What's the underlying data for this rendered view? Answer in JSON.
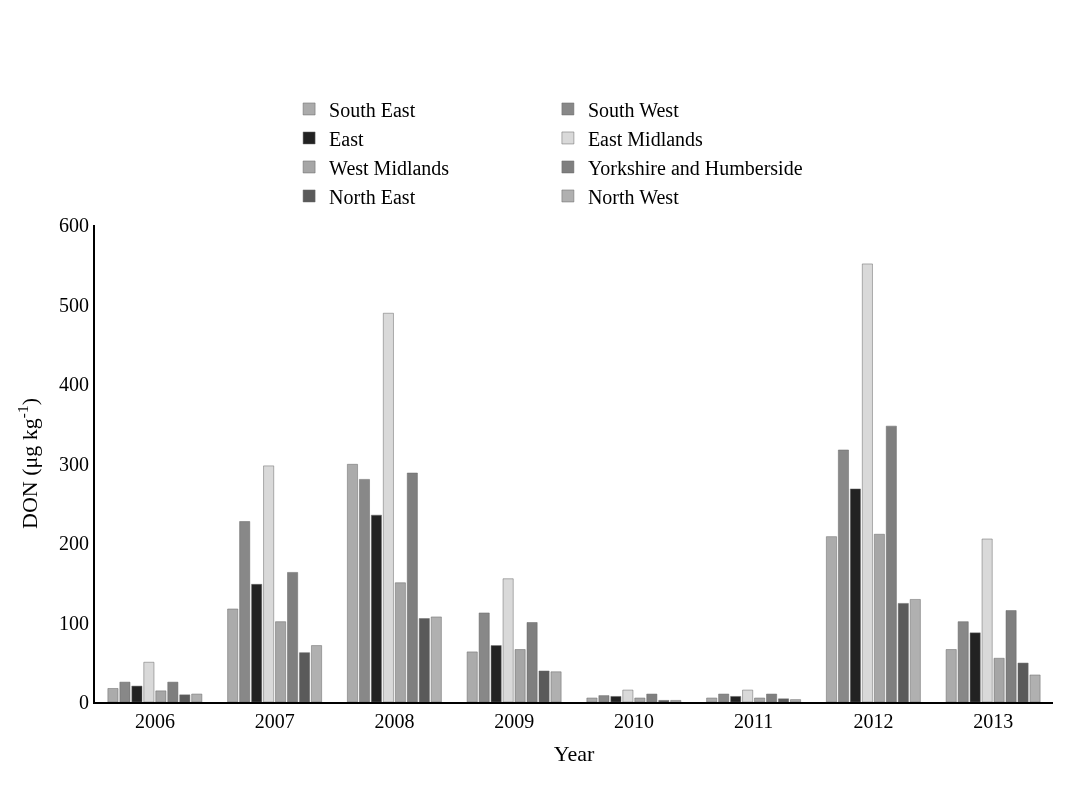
{
  "chart_data": {
    "type": "bar",
    "xlabel": "Year",
    "ylabel": "DON (μg kg$^{-1}$)",
    "categories": [
      "2006",
      "2007",
      "2008",
      "2009",
      "2010",
      "2011",
      "2012",
      "2013"
    ],
    "series": [
      {
        "name": "South East",
        "color": "#ababab",
        "values": [
          17,
          117,
          299,
          63,
          5,
          5,
          208,
          66
        ]
      },
      {
        "name": "South West",
        "color": "#888888",
        "values": [
          25,
          227,
          280,
          112,
          8,
          10,
          317,
          101
        ]
      },
      {
        "name": "East",
        "color": "#222222",
        "values": [
          20,
          148,
          235,
          71,
          7,
          7,
          268,
          87
        ]
      },
      {
        "name": "East Midlands",
        "color": "#d9d9d9",
        "values": [
          50,
          297,
          489,
          155,
          15,
          15,
          551,
          205
        ]
      },
      {
        "name": "West Midlands",
        "color": "#a6a6a6",
        "values": [
          14,
          101,
          150,
          66,
          5,
          5,
          211,
          55
        ]
      },
      {
        "name": "Yorkshire and Humberside",
        "color": "#7f7f7f",
        "values": [
          25,
          163,
          288,
          100,
          10,
          10,
          347,
          115
        ]
      },
      {
        "name": "North East",
        "color": "#5a5a5a",
        "values": [
          9,
          62,
          105,
          39,
          2,
          4,
          124,
          49
        ]
      },
      {
        "name": "North West",
        "color": "#b0b0b0",
        "values": [
          10,
          71,
          107,
          38,
          2,
          3,
          129,
          34
        ]
      }
    ],
    "ylim": [
      0,
      600
    ],
    "yticks": [
      0,
      100,
      200,
      300,
      400,
      500,
      600
    ],
    "grid": false,
    "legend": "top"
  }
}
